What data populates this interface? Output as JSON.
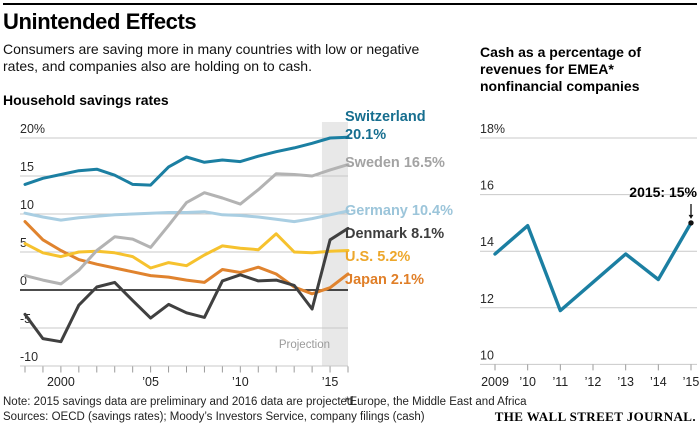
{
  "header": {
    "title": "Unintended Effects",
    "subtitle_lines": [
      "Consumers are saving more in many countries with low or negative",
      "rates, and companies also are holding on to cash."
    ]
  },
  "left_chart": {
    "title": "Household savings rates",
    "projection_label": "Projection"
  },
  "right_chart": {
    "title_lines": [
      "Cash as a percentage of",
      "revenues for EMEA*",
      "nonfinancial companies"
    ],
    "annotation_text": "2015: 15%"
  },
  "footer": {
    "note": "Note: 2015 savings data are preliminary and 2016 data are projected.",
    "footnote": "*Europe, the Middle East and Africa",
    "sources": "Sources: OECD (savings rates); Moody’s Investors Service, company filings (cash)",
    "logo": "THE WALL STREET JOURNAL."
  },
  "colors": {
    "grid": "#c9c9c9",
    "zero_line": "#111111",
    "projection_band": "#e8e8e8",
    "tick": "#9b9b9b",
    "axis_text": "#2b2b2b"
  },
  "chart_data": [
    {
      "type": "line",
      "title": "Household savings rates",
      "x": [
        1998,
        1999,
        2000,
        2001,
        2002,
        2003,
        2004,
        2005,
        2006,
        2007,
        2008,
        2009,
        2010,
        2011,
        2012,
        2013,
        2014,
        2015,
        2016
      ],
      "x_ticks": [
        {
          "year": 2000,
          "label": "2000"
        },
        {
          "year": 2005,
          "label": "’05"
        },
        {
          "year": 2010,
          "label": "’10"
        },
        {
          "year": 2015,
          "label": "’15"
        }
      ],
      "y_ticks": [
        {
          "v": 20,
          "label": "20%"
        },
        {
          "v": 15,
          "label": "15"
        },
        {
          "v": 10,
          "label": "10"
        },
        {
          "v": 5,
          "label": "5"
        },
        {
          "v": 0,
          "label": "0"
        },
        {
          "v": -5,
          "label": "-5"
        },
        {
          "v": -10,
          "label": "-10"
        }
      ],
      "ylim": [
        -10,
        20
      ],
      "projection_start_year": 2014.55,
      "series": [
        {
          "id": "germany",
          "name": "Germany",
          "end_label": "10.4%",
          "color": "#a9cee2",
          "label_color": "#9cc5da",
          "two_line": false,
          "values": [
            10.1,
            9.6,
            9.2,
            9.5,
            9.7,
            9.9,
            10.0,
            10.1,
            10.2,
            10.2,
            10.3,
            9.9,
            9.8,
            9.6,
            9.3,
            9.0,
            9.4,
            9.9,
            10.4
          ]
        },
        {
          "id": "japan",
          "name": "Japan",
          "end_label": "2.1%",
          "color": "#e0832e",
          "label_color": "#e07f28",
          "two_line": false,
          "values": [
            9.0,
            6.6,
            5.2,
            4.0,
            3.4,
            2.9,
            2.4,
            1.9,
            1.7,
            1.3,
            1.0,
            2.7,
            2.3,
            3.0,
            2.1,
            0.4,
            -0.5,
            0.3,
            2.1
          ]
        },
        {
          "id": "us",
          "name": "U.S.",
          "end_label": "5.2%",
          "color": "#f6c22e",
          "label_color": "#eda72b",
          "two_line": false,
          "values": [
            6.1,
            4.9,
            4.4,
            5.0,
            5.1,
            4.9,
            4.4,
            2.9,
            3.6,
            3.2,
            4.6,
            5.8,
            5.5,
            5.3,
            7.4,
            5.0,
            4.9,
            5.1,
            5.2
          ]
        },
        {
          "id": "sweden",
          "name": "Sweden",
          "end_label": "16.5%",
          "color": "#b3b3b3",
          "label_color": "#a3a3a3",
          "two_line": false,
          "values": [
            1.9,
            1.3,
            0.8,
            2.6,
            5.2,
            7.0,
            6.7,
            5.6,
            8.5,
            11.5,
            12.8,
            12.1,
            11.3,
            13.2,
            15.3,
            15.2,
            15.0,
            15.8,
            16.5
          ]
        },
        {
          "id": "denmark",
          "name": "Denmark",
          "end_label": "8.1%",
          "color": "#404040",
          "label_color": "#3d3d3d",
          "two_line": false,
          "values": [
            -3.2,
            -6.4,
            -6.8,
            -2.0,
            0.4,
            1.0,
            -1.4,
            -3.7,
            -1.9,
            -3.0,
            -3.6,
            1.2,
            2.0,
            1.2,
            1.3,
            0.6,
            -2.5,
            6.6,
            8.1
          ]
        },
        {
          "id": "switzerland",
          "name": "Switzerland",
          "end_label": "20.1%",
          "color": "#1b7fa2",
          "label_color": "#166e8f",
          "two_line": true,
          "values": [
            13.9,
            14.7,
            15.2,
            15.7,
            15.9,
            15.1,
            13.9,
            13.8,
            16.2,
            17.5,
            16.8,
            17.1,
            16.9,
            17.6,
            18.2,
            18.7,
            19.3,
            20.0,
            20.1
          ]
        }
      ]
    },
    {
      "type": "line",
      "title": "Cash as a percentage of revenues for EMEA* nonfinancial companies",
      "x": [
        2009,
        2010,
        2011,
        2012,
        2013,
        2014,
        2015
      ],
      "x_ticks": [
        {
          "year": 2009,
          "label": "2009"
        },
        {
          "year": 2010,
          "label": "’10"
        },
        {
          "year": 2011,
          "label": "’11"
        },
        {
          "year": 2012,
          "label": "’12"
        },
        {
          "year": 2013,
          "label": "’13"
        },
        {
          "year": 2014,
          "label": "’14"
        },
        {
          "year": 2015,
          "label": "’15"
        }
      ],
      "y_ticks": [
        {
          "v": 18,
          "label": "18%"
        },
        {
          "v": 16,
          "label": "16"
        },
        {
          "v": 14,
          "label": "14"
        },
        {
          "v": 12,
          "label": "12"
        },
        {
          "v": 10,
          "label": "10"
        }
      ],
      "ylim": [
        10,
        18
      ],
      "series": [
        {
          "id": "emea-cash",
          "name": "Cash as a percentage of revenues",
          "color": "#1b7fa2",
          "values": [
            13.9,
            14.9,
            11.9,
            12.9,
            13.9,
            13.0,
            15.0
          ]
        }
      ],
      "annotation": {
        "text": "2015: 15%",
        "x": 2015,
        "y": 15
      }
    }
  ]
}
